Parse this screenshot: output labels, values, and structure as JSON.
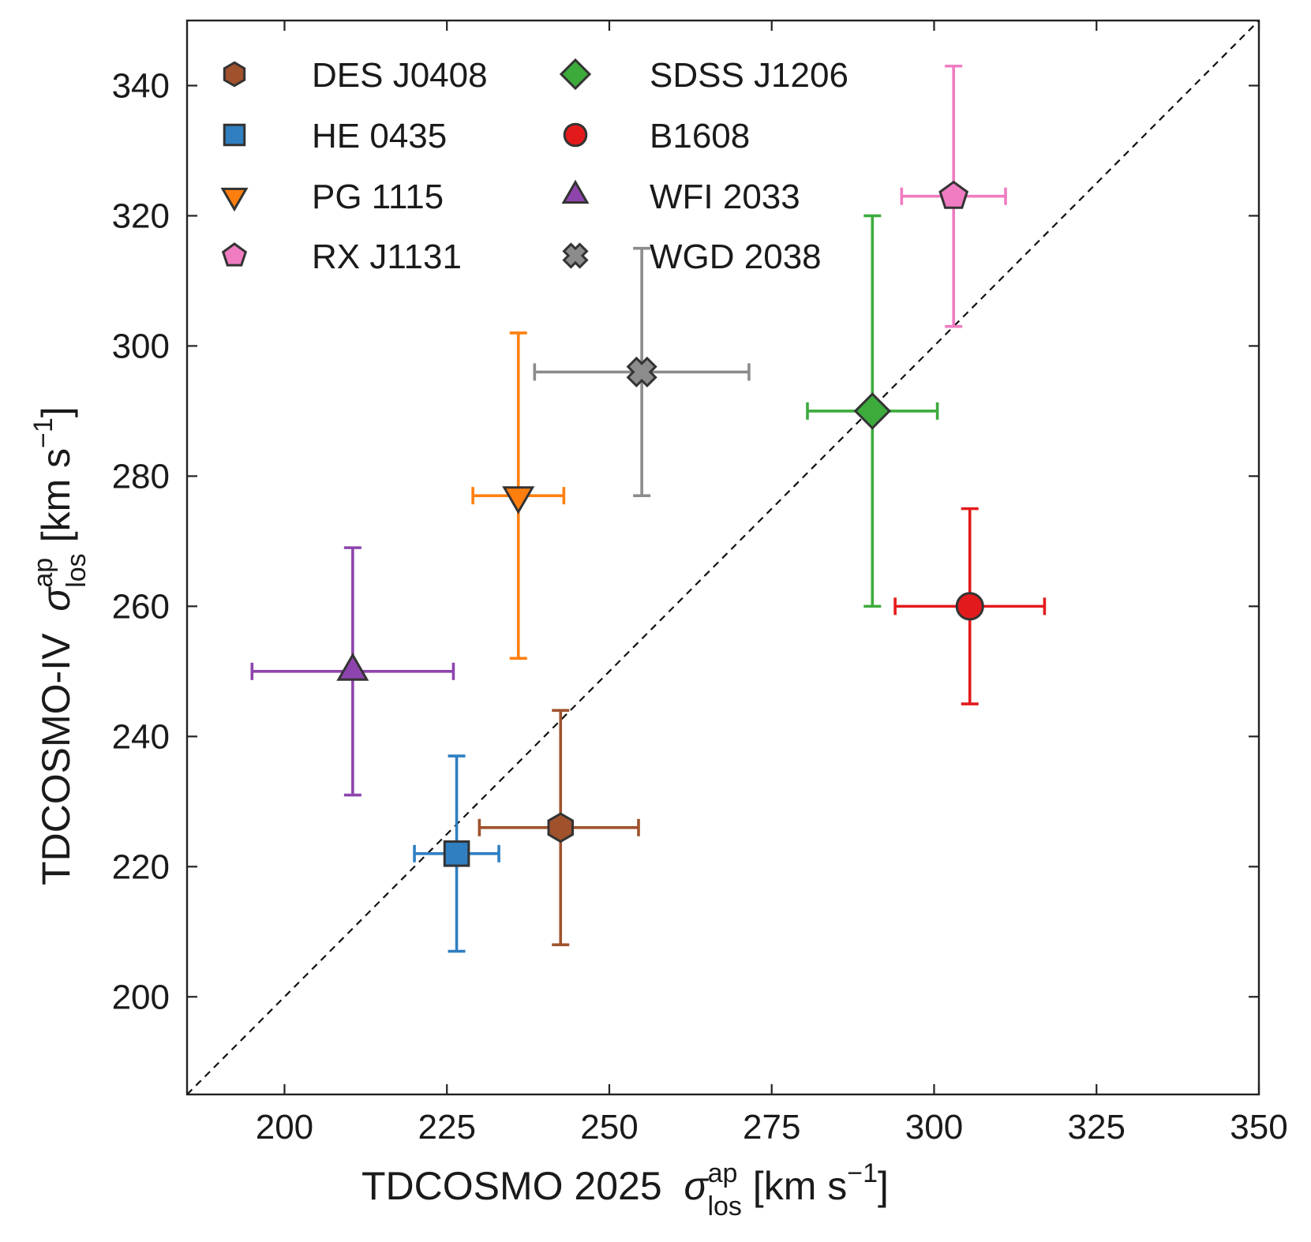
{
  "chart_data": {
    "type": "scatter",
    "title": "",
    "xlabel": {
      "prefix": "TDCOSMO 2025",
      "symbol": "σ",
      "sup": "ap",
      "sub": "los",
      "unit_open": "[km s",
      "unit_exp": "−1",
      "unit_close": "]"
    },
    "ylabel": {
      "prefix": "TDCOSMO-IV",
      "symbol": "σ",
      "sup": "ap",
      "sub": "los",
      "unit_open": "[km s",
      "unit_exp": "−1",
      "unit_close": "]"
    },
    "xlim": [
      185,
      350
    ],
    "ylim": [
      185,
      350
    ],
    "xticks": [
      200,
      225,
      250,
      275,
      300,
      325,
      350
    ],
    "xtick_labels": [
      "200",
      "225",
      "250",
      "275",
      "300",
      "325",
      "350"
    ],
    "yticks": [
      200,
      220,
      240,
      260,
      280,
      300,
      320,
      340
    ],
    "ytick_labels": [
      "200",
      "220",
      "240",
      "260",
      "280",
      "300",
      "320",
      "340"
    ],
    "grid": false,
    "reference_line": {
      "style": "dashed",
      "x": [
        185,
        350
      ],
      "y": [
        185,
        350
      ]
    },
    "legend_position": "upper-left",
    "series": [
      {
        "name": "DES J0408",
        "marker": "hexagon",
        "color": "#a0522d",
        "x": 242.5,
        "y": 226,
        "xerr": [
          12.5,
          12
        ],
        "yerr": [
          18,
          18
        ]
      },
      {
        "name": "HE 0435",
        "marker": "square",
        "color": "#2f7fc1",
        "x": 226.5,
        "y": 222,
        "xerr": [
          6.5,
          6.5
        ],
        "yerr": [
          15,
          15
        ]
      },
      {
        "name": "PG 1115",
        "marker": "triangle-down",
        "color": "#ff7f0e",
        "x": 236,
        "y": 277,
        "xerr": [
          7,
          7
        ],
        "yerr": [
          25,
          25
        ]
      },
      {
        "name": "RX J1131",
        "marker": "pentagon",
        "color": "#f07cc2",
        "x": 303,
        "y": 323,
        "xerr": [
          8,
          8
        ],
        "yerr": [
          20,
          20
        ]
      },
      {
        "name": "SDSS J1206",
        "marker": "diamond",
        "color": "#3cab3c",
        "x": 290.5,
        "y": 290,
        "xerr": [
          10,
          10
        ],
        "yerr": [
          30,
          30
        ]
      },
      {
        "name": "B1608",
        "marker": "circle",
        "color": "#e31a1c",
        "x": 305.5,
        "y": 260,
        "xerr": [
          11.5,
          11.5
        ],
        "yerr": [
          15,
          15
        ]
      },
      {
        "name": "WFI 2033",
        "marker": "triangle-up",
        "color": "#8e44ad",
        "x": 210.5,
        "y": 250,
        "xerr": [
          15.5,
          15.5
        ],
        "yerr": [
          19,
          19
        ]
      },
      {
        "name": "WGD 2038",
        "marker": "x-filled",
        "color": "#8c8c8c",
        "x": 255,
        "y": 296,
        "xerr": [
          16.5,
          16.5
        ],
        "yerr": [
          19,
          19
        ]
      }
    ]
  }
}
